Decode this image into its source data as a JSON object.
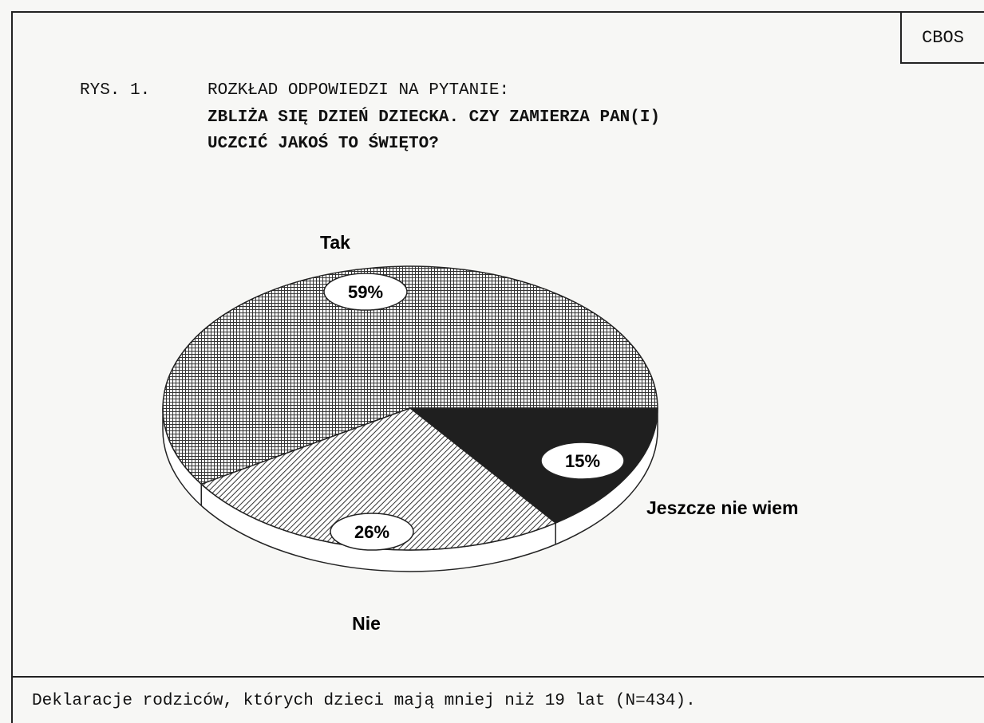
{
  "brand": "CBOS",
  "title": {
    "prefix": "RYS. 1.",
    "line1": "ROZKŁAD ODPOWIEDZI NA PYTANIE:",
    "line2": "ZBLIŻA SIĘ DZIEŃ DZIECKA. CZY ZAMIERZA PAN(I)",
    "line3": "UCZCIĆ JAKOŚ TO ŚWIĘTO?"
  },
  "caption": "Deklaracje rodziców, których dzieci mają mniej niż 19 lat (N=434).",
  "chart_data": {
    "type": "pie",
    "title": "ROZKŁAD ODPOWIEDZI NA PYTANIE: ZBLIŻA SIĘ DZIEŃ DZIECKA. CZY ZAMIERZA PAN(I) UCZCIĆ JAKOŚ TO ŚWIĘTO?",
    "style": "3d",
    "slices": [
      {
        "label": "Tak",
        "value": 59,
        "value_label": "59%",
        "pattern": "crosshatch"
      },
      {
        "label": "Jeszcze nie wiem",
        "value": 15,
        "value_label": "15%",
        "pattern": "solid-black"
      },
      {
        "label": "Nie",
        "value": 26,
        "value_label": "26%",
        "pattern": "diagonal-hatch"
      }
    ]
  }
}
